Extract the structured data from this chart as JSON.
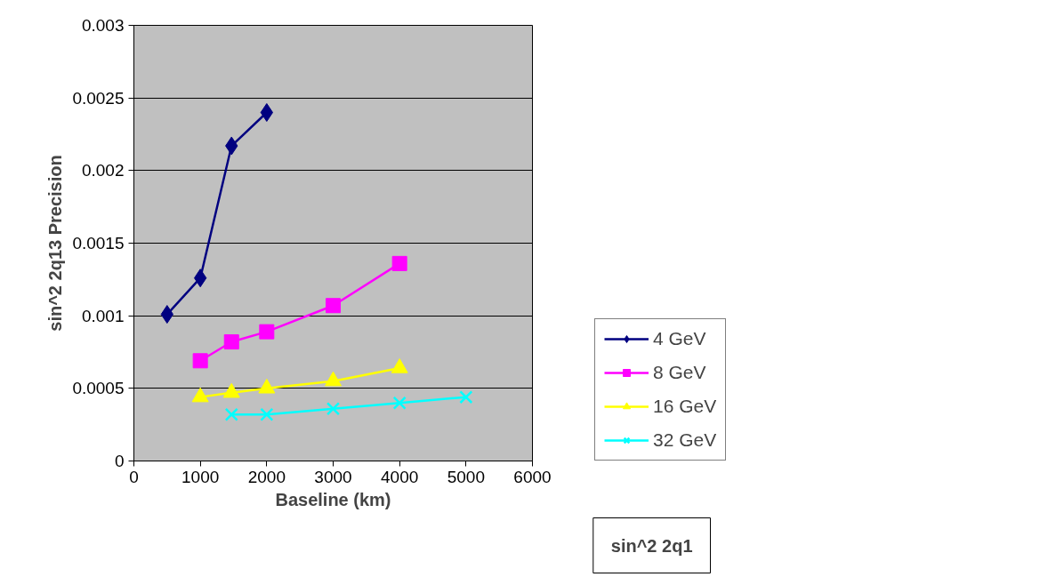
{
  "chart_data": {
    "type": "line",
    "xlabel": "Baseline (km)",
    "ylabel": "sin^2 2q13 Precision",
    "xlim": [
      0,
      6000
    ],
    "xticks": [
      0,
      1000,
      2000,
      3000,
      4000,
      5000,
      6000
    ],
    "ylim": [
      0,
      0.003
    ],
    "yticks": [
      0,
      0.0005,
      0.001,
      0.0015,
      0.002,
      0.0025,
      0.003
    ],
    "grid": "y",
    "legend": "right",
    "series": [
      {
        "name": "4 GeV",
        "color": "#000080",
        "marker": "diamond",
        "x": [
          500,
          1000,
          1470,
          2000
        ],
        "values": [
          0.00101,
          0.00126,
          0.00217,
          0.0024
        ]
      },
      {
        "name": "8 GeV",
        "color": "#ff00ff",
        "marker": "square",
        "x": [
          1000,
          1470,
          2000,
          3000,
          4000
        ],
        "values": [
          0.00069,
          0.00082,
          0.00089,
          0.00107,
          0.00136
        ]
      },
      {
        "name": "16 GeV",
        "color": "#ffff00",
        "marker": "triangle",
        "x": [
          1000,
          1470,
          2000,
          3000,
          4000
        ],
        "values": [
          0.00044,
          0.00047,
          0.0005,
          0.00055,
          0.00064
        ]
      },
      {
        "name": "32 GeV",
        "color": "#00ffff",
        "marker": "cross",
        "x": [
          1470,
          2000,
          3000,
          4000,
          5000
        ],
        "values": [
          0.00032,
          0.00032,
          0.00036,
          0.0004,
          0.00044
        ]
      }
    ],
    "annotations": [
      "sin^2 2q1"
    ]
  }
}
